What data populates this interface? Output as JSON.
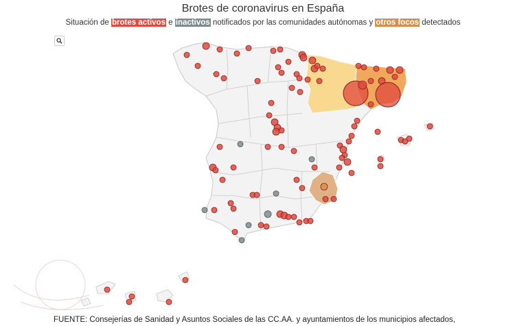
{
  "title": "Brotes de coronavirus en España",
  "subtitle": {
    "prefix": "Situación de",
    "active_label": "brotes activos",
    "connector": "e",
    "inactive_label": "inactivos",
    "middle": "notificados por las comunidades autónomas y",
    "other_label": "otros focos",
    "suffix": "detectados"
  },
  "colors": {
    "active": "#e04a3f",
    "inactive": "#7f8c8d",
    "other": "#d4904a",
    "region_fill": "#f3f3f3",
    "region_stroke": "#c8c8c8",
    "highlight_catalonia": "#f0a04b",
    "highlight_aragon": "#f9d98f",
    "highlight_murcia": "#dfb184"
  },
  "zoom_icon": "search-icon",
  "source": "FUENTE: Consejerías de Sanidad y Asuntos Sociales de las CC.AA. y ayuntamientos de los municipios afectados,"
}
